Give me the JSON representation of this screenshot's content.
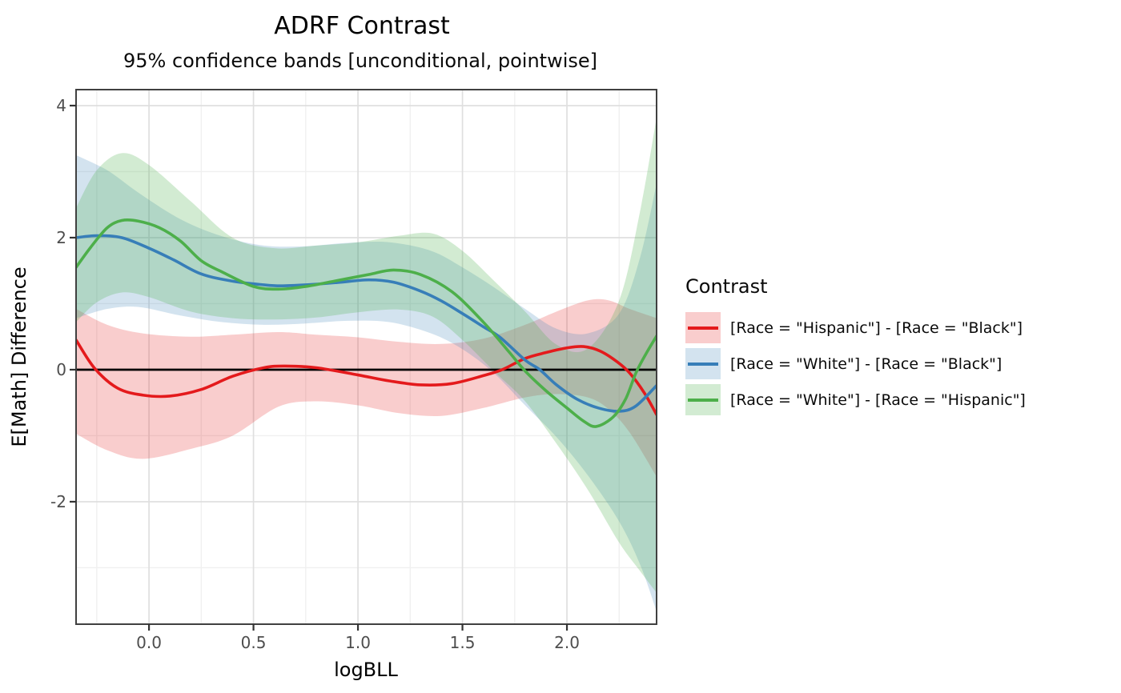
{
  "chart_data": {
    "type": "line",
    "title": "ADRF Contrast",
    "subtitle": "95% confidence bands [unconditional, pointwise]",
    "xlabel": "logBLL",
    "ylabel": "E[Math] Difference",
    "xlim": [
      -0.349,
      2.429
    ],
    "ylim": [
      -3.855,
      4.242
    ],
    "x_major_ticks": [
      0.0,
      0.5,
      1.0,
      1.5,
      2.0
    ],
    "x_tick_labels": [
      "0.0",
      "0.5",
      "1.0",
      "1.5",
      "2.0"
    ],
    "x_minor_ticks": [
      -0.25,
      0.25,
      0.75,
      1.25,
      1.75,
      2.25
    ],
    "y_major_ticks": [
      -2,
      0,
      2,
      4
    ],
    "y_tick_labels": [
      "-2",
      "0",
      "2",
      "4"
    ],
    "y_minor_ticks": [
      -3,
      -1,
      1,
      3
    ],
    "reference_line_y": 0,
    "reference_line_color": "#000000",
    "grid": true,
    "panel_border_color": "#404040",
    "grid_major_color": "#dfdfdf",
    "grid_minor_color": "#f0f0f0",
    "legend_position": "right",
    "legend_title": "Contrast",
    "series": [
      {
        "name": "[Race = \"Hispanic\"] - [Race = \"Black\"]",
        "color": "#E41A1C",
        "fill_alpha": 0.22,
        "x": [
          -0.349,
          -0.26,
          -0.15,
          -0.03,
          0.1,
          0.25,
          0.4,
          0.55,
          0.65,
          0.8,
          1.0,
          1.15,
          1.3,
          1.45,
          1.6,
          1.69,
          1.8,
          1.9,
          2.0,
          2.08,
          2.16,
          2.24,
          2.3,
          2.37,
          2.429
        ],
        "y": [
          0.45,
          0.02,
          -0.28,
          -0.385,
          -0.4,
          -0.3,
          -0.1,
          0.03,
          0.055,
          0.03,
          -0.08,
          -0.17,
          -0.23,
          -0.21,
          -0.09,
          0,
          0.17,
          0.26,
          0.33,
          0.35,
          0.28,
          0.12,
          -0.05,
          -0.35,
          -0.68
        ],
        "band_x": [
          -0.349,
          -0.2,
          -0.03,
          0.2,
          0.4,
          0.62,
          0.8,
          1.0,
          1.2,
          1.4,
          1.6,
          1.8,
          1.95,
          2.1,
          2.2,
          2.3,
          2.429
        ],
        "band_upper": [
          0.92,
          0.68,
          0.55,
          0.5,
          0.53,
          0.57,
          0.53,
          0.49,
          0.42,
          0.39,
          0.47,
          0.68,
          0.88,
          1.05,
          1.05,
          0.92,
          0.78
        ],
        "band_lower": [
          -0.97,
          -1.22,
          -1.35,
          -1.2,
          -1.0,
          -0.56,
          -0.48,
          -0.54,
          -0.66,
          -0.7,
          -0.58,
          -0.42,
          -0.37,
          -0.42,
          -0.6,
          -0.95,
          -1.62
        ]
      },
      {
        "name": "[Race = \"White\"] - [Race = \"Black\"]",
        "color": "#377EB8",
        "fill_alpha": 0.22,
        "x": [
          -0.349,
          -0.25,
          -0.13,
          0,
          0.12,
          0.25,
          0.4,
          0.55,
          0.63,
          0.75,
          0.9,
          1.05,
          1.17,
          1.3,
          1.4,
          1.5,
          1.6,
          1.68,
          1.8,
          1.87,
          1.95,
          2.05,
          2.15,
          2.25,
          2.33,
          2.429
        ],
        "y": [
          2.0,
          2.03,
          2.0,
          1.84,
          1.66,
          1.45,
          1.34,
          1.285,
          1.27,
          1.285,
          1.32,
          1.36,
          1.325,
          1.19,
          1.04,
          0.85,
          0.65,
          0.49,
          0.145,
          0,
          -0.23,
          -0.45,
          -0.58,
          -0.63,
          -0.55,
          -0.24
        ],
        "band_x": [
          -0.349,
          -0.2,
          -0.05,
          0.15,
          0.35,
          0.55,
          0.75,
          0.95,
          1.15,
          1.35,
          1.5,
          1.65,
          1.8,
          1.95,
          2.1,
          2.25,
          2.35,
          2.429
        ],
        "band_upper": [
          3.25,
          3.02,
          2.68,
          2.28,
          2.02,
          1.88,
          1.87,
          1.92,
          1.93,
          1.8,
          1.55,
          1.25,
          0.92,
          0.62,
          0.55,
          0.85,
          1.7,
          2.82
        ],
        "band_lower": [
          0.78,
          0.92,
          0.95,
          0.82,
          0.72,
          0.68,
          0.7,
          0.74,
          0.72,
          0.55,
          0.31,
          -0.05,
          -0.54,
          -1.02,
          -1.6,
          -2.3,
          -2.95,
          -3.66
        ]
      },
      {
        "name": "[Race = \"White\"] - [Race = \"Hispanic\"]",
        "color": "#4DAF4A",
        "fill_alpha": 0.25,
        "x": [
          -0.349,
          -0.28,
          -0.2,
          -0.13,
          -0.05,
          0.05,
          0.15,
          0.25,
          0.35,
          0.5,
          0.62,
          0.75,
          0.9,
          1.05,
          1.17,
          1.3,
          1.45,
          1.6,
          1.72,
          1.8,
          1.9,
          2.0,
          2.08,
          2.14,
          2.22,
          2.28,
          2.33,
          2.38,
          2.429
        ],
        "y": [
          1.55,
          1.85,
          2.15,
          2.26,
          2.25,
          2.15,
          1.95,
          1.65,
          1.48,
          1.26,
          1.22,
          1.26,
          1.35,
          1.44,
          1.51,
          1.44,
          1.18,
          0.72,
          0.28,
          -0.02,
          -0.32,
          -0.58,
          -0.78,
          -0.86,
          -0.72,
          -0.45,
          -0.05,
          0.25,
          0.51
        ],
        "band_x": [
          -0.349,
          -0.25,
          -0.13,
          0,
          0.2,
          0.4,
          0.6,
          0.8,
          1.0,
          1.2,
          1.36,
          1.5,
          1.65,
          1.8,
          1.95,
          2.1,
          2.25,
          2.35,
          2.429
        ],
        "band_upper": [
          2.45,
          3.02,
          3.28,
          3.1,
          2.55,
          2.0,
          1.84,
          1.88,
          1.93,
          2.03,
          2.06,
          1.8,
          1.35,
          0.88,
          0.38,
          0.32,
          1.05,
          2.4,
          3.82
        ],
        "band_lower": [
          0.72,
          1.02,
          1.17,
          1.1,
          0.88,
          0.78,
          0.76,
          0.79,
          0.87,
          0.91,
          0.8,
          0.45,
          -0.02,
          -0.48,
          -1.12,
          -1.82,
          -2.62,
          -3.05,
          -3.38
        ]
      }
    ]
  }
}
